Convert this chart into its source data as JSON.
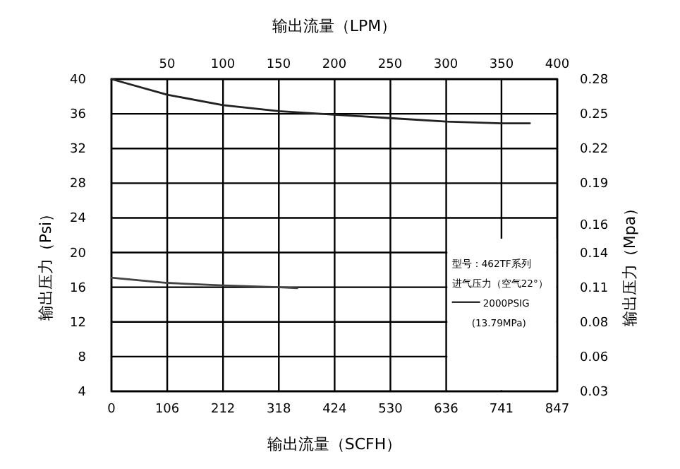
{
  "chart_data": {
    "type": "line",
    "xlabel": "输出流量（SCFH）",
    "x2label": "输出流量（LPM）",
    "ylabel": "输出压力（Psi）",
    "y2label": "输出压力（Mpa）",
    "xlim": [
      0,
      847
    ],
    "xticks": [
      0,
      106,
      212,
      318,
      424,
      530,
      636,
      741,
      847
    ],
    "x2lim": [
      0,
      400
    ],
    "x2ticks": [
      50,
      100,
      150,
      200,
      250,
      300,
      350,
      400
    ],
    "ylim": [
      4,
      40
    ],
    "yticks": [
      4,
      8,
      12,
      16,
      20,
      24,
      28,
      32,
      36,
      40
    ],
    "y2lim": [
      0.0276,
      0.2758
    ],
    "y2ticks": [
      {
        "value": 0.0276,
        "label": "0.03"
      },
      {
        "value": 0.0552,
        "label": "0.06"
      },
      {
        "value": 0.0827,
        "label": "0.08"
      },
      {
        "value": 0.1103,
        "label": "0.11"
      },
      {
        "value": 0.1379,
        "label": "0.14"
      },
      {
        "value": 0.16,
        "label": "0.16"
      },
      {
        "value": 0.1931,
        "label": "0.19"
      },
      {
        "value": 0.2206,
        "label": "0.22"
      },
      {
        "value": 0.2482,
        "label": "0.25"
      },
      {
        "value": 0.2758,
        "label": "0.28"
      }
    ],
    "grid": true,
    "series": [
      {
        "color": "#222222",
        "x": [
          0,
          106,
          212,
          318,
          424,
          530,
          636,
          741,
          795
        ],
        "values": [
          40,
          38.2,
          37.0,
          36.3,
          35.9,
          35.5,
          35.1,
          34.9,
          34.9
        ]
      },
      {
        "color": "#444444",
        "x": [
          0,
          106,
          212,
          318,
          353
        ],
        "values": [
          17.1,
          16.5,
          16.2,
          16.0,
          15.9
        ]
      }
    ],
    "annotations": [
      "型号：462TF系列",
      "进气压力（空气22°）",
      "2000PSIG",
      "(13.79MPa)"
    ]
  }
}
